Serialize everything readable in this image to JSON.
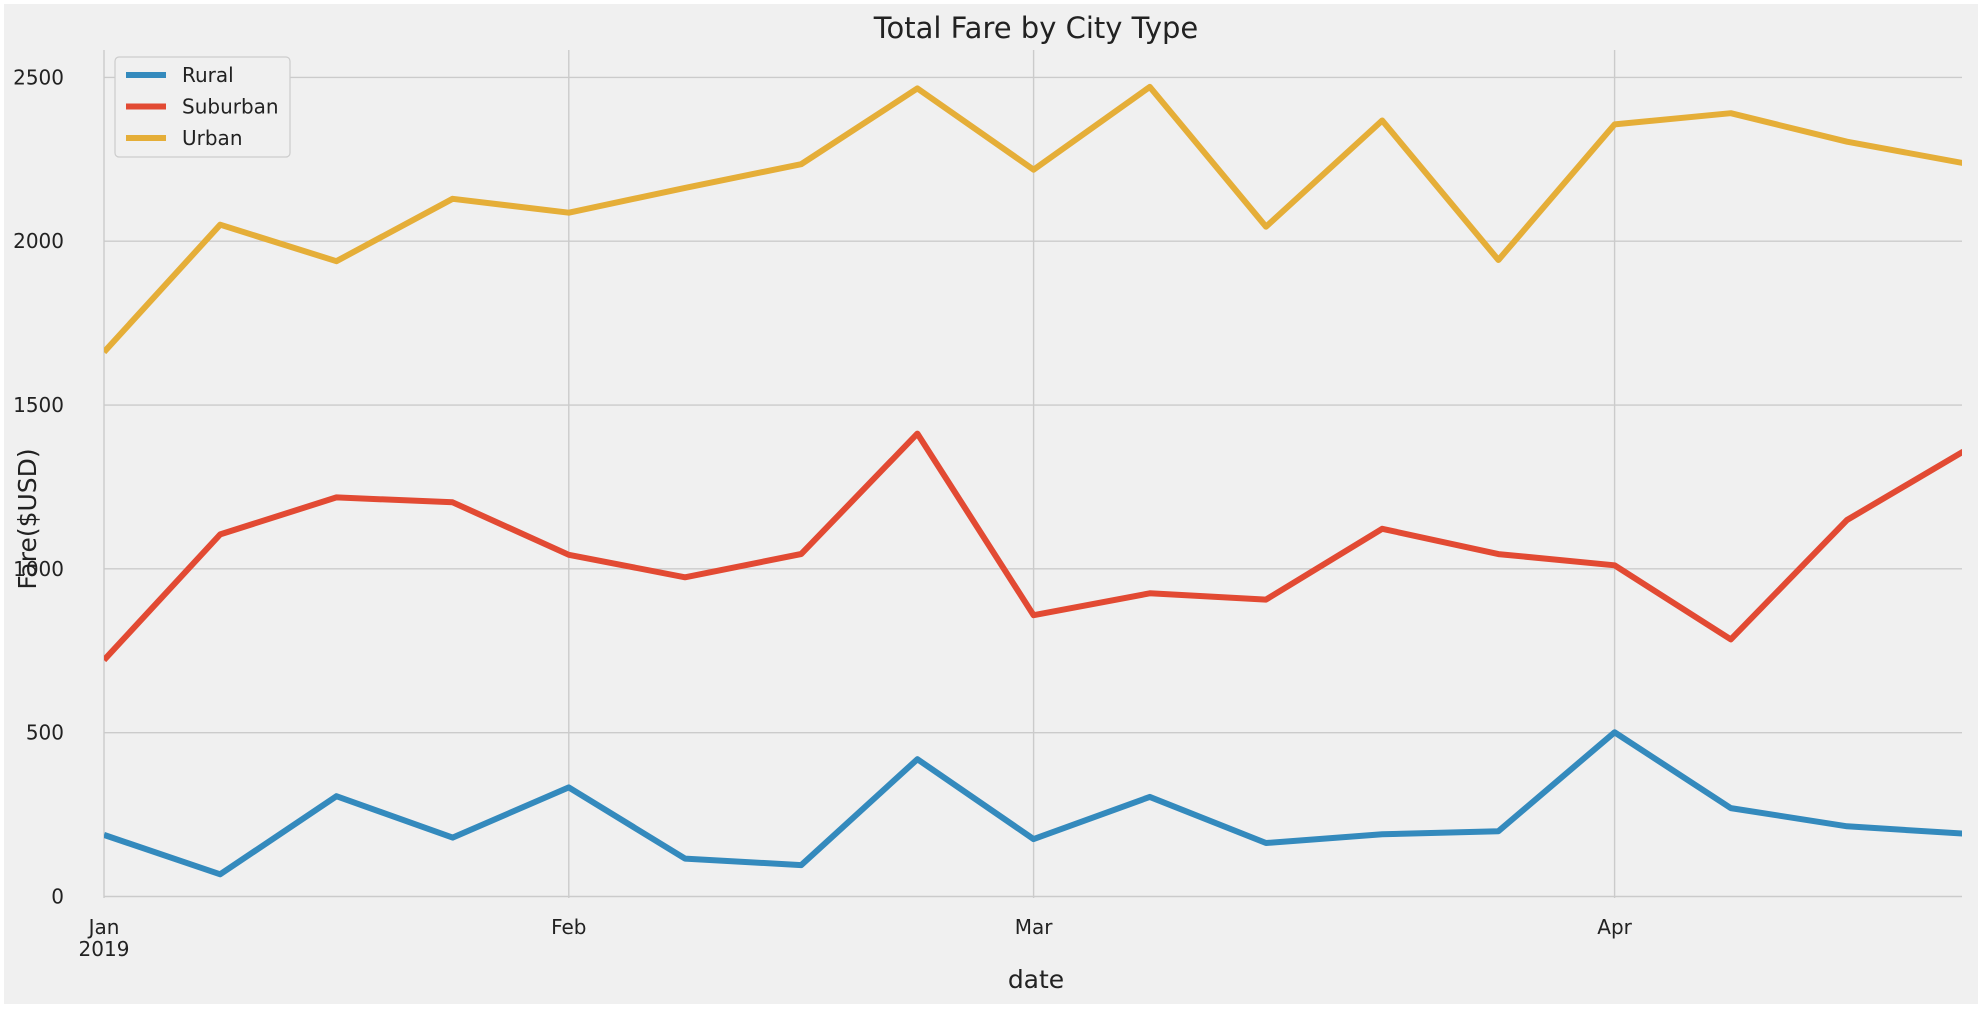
{
  "chart_data": {
    "type": "line",
    "title": "Total Fare by City Type",
    "xlabel": "date",
    "ylabel": "Fare($USD)",
    "x": [
      "2019-01-06",
      "2019-01-13",
      "2019-01-20",
      "2019-01-27",
      "2019-02-03",
      "2019-02-10",
      "2019-02-17",
      "2019-02-24",
      "2019-03-03",
      "2019-03-10",
      "2019-03-17",
      "2019-03-24",
      "2019-03-31",
      "2019-04-07",
      "2019-04-14",
      "2019-04-21",
      "2019-04-28"
    ],
    "x_tick_labels": [
      "Jan",
      "Feb",
      "Mar",
      "Apr"
    ],
    "x_tick_index": [
      0,
      4,
      8,
      13
    ],
    "x_year_label": "2019",
    "ylim": [
      -75,
      2600
    ],
    "yticks": [
      "0",
      "500",
      "1000",
      "1500",
      "2000",
      "2500"
    ],
    "grid": true,
    "legend_position": "top-left",
    "series": [
      {
        "name": "Rural",
        "color": "#348ABD",
        "values": [
          187.92,
          67.65,
          306.0,
          179.69,
          333.08,
          115.8,
          95.82,
          419.06,
          175.14,
          303.94,
          163.39,
          189.76,
          199.42,
          501.24,
          269.79,
          214.14,
          191.85
        ]
      },
      {
        "name": "Suburban",
        "color": "#E24A33",
        "values": [
          721.6,
          1105.13,
          1218.2,
          1203.28,
          1042.79,
          974.34,
          1045.5,
          1412.74,
          858.46,
          925.27,
          906.2,
          1122.2,
          1045.06,
          1010.73,
          784.82,
          1149.27,
          1357.75
        ]
      },
      {
        "name": "Urban",
        "color": "#E5AE38",
        "values": [
          1661.68,
          2050.43,
          1939.02,
          2129.51,
          2086.94,
          2162.64,
          2235.07,
          2466.29,
          2218.2,
          2470.93,
          2044.42,
          2368.37,
          1942.77,
          2356.7,
          2390.72,
          2303.8,
          2238.29
        ]
      }
    ]
  }
}
